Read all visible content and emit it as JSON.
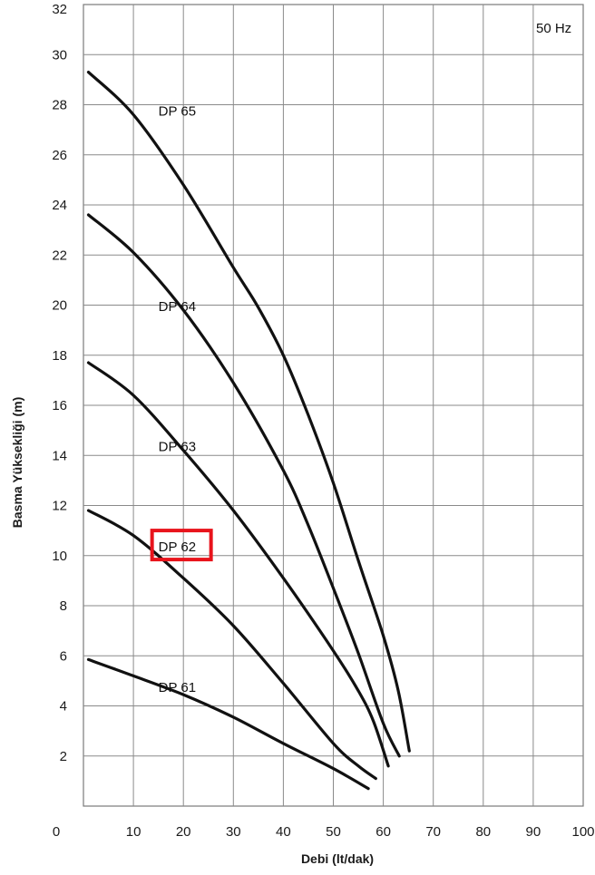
{
  "chart_data": {
    "type": "line",
    "annotation": "50 Hz",
    "xlabel": "Debi (lt/dak)",
    "ylabel": "Basma Yüksekliği (m)",
    "xlim": [
      0,
      100
    ],
    "ylim": [
      0,
      32
    ],
    "x_ticks": [
      0,
      10,
      20,
      30,
      40,
      50,
      60,
      70,
      80,
      90,
      100
    ],
    "y_ticks": [
      2,
      4,
      6,
      8,
      10,
      12,
      14,
      16,
      18,
      20,
      22,
      24,
      26,
      28,
      30,
      32
    ],
    "grid": true,
    "highlighted_series": "DP 62",
    "highlight_color": "#e8141c",
    "series": [
      {
        "name": "DP 61",
        "x": [
          1,
          10,
          20,
          30,
          40,
          50,
          57
        ],
        "y": [
          5.85,
          5.2,
          4.45,
          3.55,
          2.5,
          1.5,
          0.7
        ]
      },
      {
        "name": "DP 62",
        "x": [
          1,
          10,
          20,
          30,
          40,
          50,
          55,
          58.5
        ],
        "y": [
          11.8,
          10.8,
          9.1,
          7.2,
          4.9,
          2.5,
          1.6,
          1.1
        ]
      },
      {
        "name": "DP 63",
        "x": [
          1,
          10,
          20,
          30,
          40,
          50,
          55,
          58,
          61
        ],
        "y": [
          17.7,
          16.4,
          14.2,
          11.8,
          9.1,
          6.2,
          4.6,
          3.4,
          1.6
        ]
      },
      {
        "name": "DP 64",
        "x": [
          1,
          10,
          20,
          30,
          40,
          45,
          50,
          55,
          60,
          63.2
        ],
        "y": [
          23.6,
          22.1,
          19.8,
          16.9,
          13.4,
          11.2,
          8.7,
          6.1,
          3.3,
          2.0
        ]
      },
      {
        "name": "DP 65",
        "x": [
          1,
          10,
          20,
          30,
          35,
          40,
          45,
          50,
          55,
          60,
          63,
          65.2
        ],
        "y": [
          29.3,
          27.6,
          24.8,
          21.5,
          19.9,
          18.0,
          15.6,
          12.9,
          9.8,
          6.8,
          4.6,
          2.2
        ]
      }
    ],
    "series_labels": [
      {
        "name": "DP 65",
        "x": 15,
        "y": 27.75
      },
      {
        "name": "DP 64",
        "x": 15,
        "y": 19.95
      },
      {
        "name": "DP 63",
        "x": 15,
        "y": 14.35
      },
      {
        "name": "DP 62",
        "x": 15,
        "y": 10.35
      },
      {
        "name": "DP 61",
        "x": 15,
        "y": 4.75
      }
    ]
  }
}
